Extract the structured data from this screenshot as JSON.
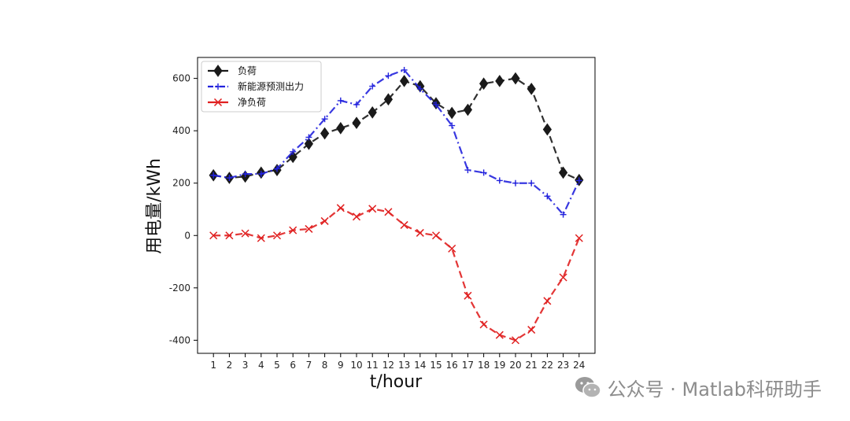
{
  "chart_data": {
    "type": "line",
    "title": "",
    "xlabel": "t/hour",
    "ylabel": "用电量/kWh",
    "x": [
      1,
      2,
      3,
      4,
      5,
      6,
      7,
      8,
      9,
      10,
      11,
      12,
      13,
      14,
      15,
      16,
      17,
      18,
      19,
      20,
      21,
      22,
      23,
      24
    ],
    "ylim": [
      -450,
      680
    ],
    "yticks": [
      -400,
      -200,
      0,
      200,
      400,
      600
    ],
    "legend_position": "top-left",
    "series": [
      {
        "name": "负荷",
        "color": "#1a1a1a",
        "marker": "diamond",
        "line_style": "dashed",
        "values": [
          230,
          220,
          225,
          240,
          250,
          300,
          350,
          390,
          410,
          430,
          470,
          520,
          590,
          570,
          505,
          468,
          480,
          580,
          590,
          600,
          560,
          405,
          240,
          212
        ]
      },
      {
        "name": "新能源预测出力",
        "color": "#2222dd",
        "marker": "plus",
        "line_style": "dashdot",
        "values": [
          230,
          220,
          235,
          235,
          255,
          320,
          375,
          445,
          515,
          500,
          570,
          610,
          632,
          560,
          500,
          420,
          250,
          240,
          210,
          200,
          200,
          150,
          80,
          210
        ]
      },
      {
        "name": "净负荷",
        "color": "#e02020",
        "marker": "x",
        "line_style": "dashed",
        "values": [
          0,
          0,
          8,
          -10,
          0,
          20,
          25,
          55,
          105,
          72,
          102,
          90,
          40,
          10,
          0,
          -50,
          -230,
          -340,
          -380,
          -400,
          -360,
          -250,
          -160,
          -10
        ]
      }
    ]
  },
  "watermark": {
    "text": "公众号 · Matlab科研助手",
    "icon": "wechat-icon"
  }
}
